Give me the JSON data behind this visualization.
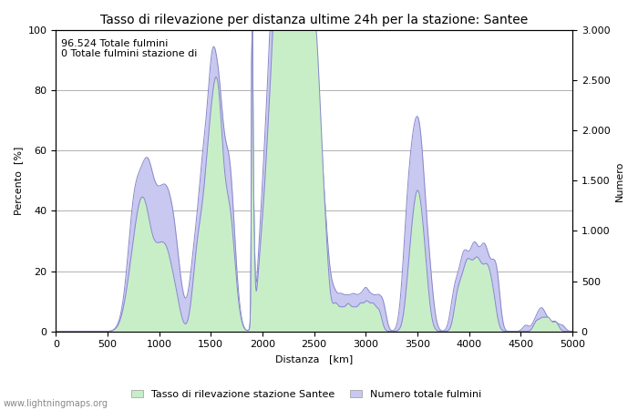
{
  "title": "Tasso di rilevazione per distanza ultime 24h per la stazione: Santee",
  "xlabel": "Distanza   [km]",
  "ylabel_left": "Percento  [%]",
  "ylabel_right": "Numero",
  "annotation_line1": "96.524 Totale fulmini",
  "annotation_line2": "0 Totale fulmini stazione di",
  "legend_label1": "Tasso di rilevazione stazione Santee",
  "legend_label2": "Numero totale fulmini",
  "watermark": "www.lightningmaps.org",
  "xlim": [
    0,
    5000
  ],
  "ylim_left": [
    0,
    100
  ],
  "ylim_right": [
    0,
    3000
  ],
  "xticks": [
    0,
    500,
    1000,
    1500,
    2000,
    2500,
    3000,
    3500,
    4000,
    4500,
    5000
  ],
  "yticks_left": [
    0,
    20,
    40,
    60,
    80,
    100
  ],
  "yticks_right": [
    0,
    500,
    1000,
    1500,
    2000,
    2500,
    3000
  ],
  "fill_green_color": "#c8eec8",
  "fill_blue_color": "#c8c8f0",
  "line_color": "#8888cc",
  "bg_color": "#f0f0f0",
  "grid_color": "#b0b0b0",
  "title_fontsize": 10,
  "axis_fontsize": 8,
  "tick_fontsize": 8,
  "annotation_fontsize": 8
}
